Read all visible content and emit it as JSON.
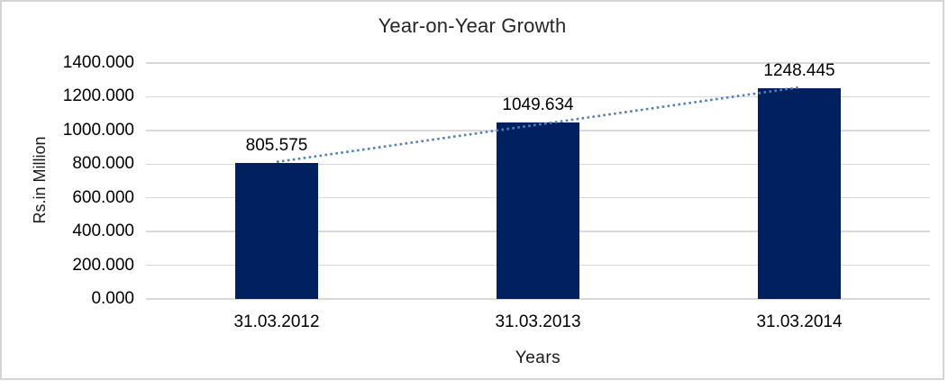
{
  "chart_data": {
    "type": "bar",
    "title": "Year-on-Year Growth",
    "categories": [
      "31.03.2012",
      "31.03.2013",
      "31.03.2014"
    ],
    "values": [
      805.575,
      1049.634,
      1248.445
    ],
    "data_labels": [
      "805.575",
      "1049.634",
      "1248.445"
    ],
    "xlabel": "Years",
    "ylabel": "Rs.in Million",
    "ylim": [
      0,
      1400
    ],
    "ytick_step": 200,
    "ytick_labels_top_to_bottom": [
      "1400.000",
      "1200.000",
      "1000.000",
      "800.000",
      "600.000",
      "400.000",
      "200.000",
      "0.000"
    ],
    "grid": true,
    "legend": "none",
    "trendline": {
      "type": "linear",
      "style": "dotted"
    },
    "colors": {
      "bar": "#002060",
      "trendline": "#4f81bd",
      "gridline": "#d9d9d9",
      "frame_border": "#d4d4d4",
      "label_text": "#000000",
      "title_text": "#262626"
    }
  }
}
